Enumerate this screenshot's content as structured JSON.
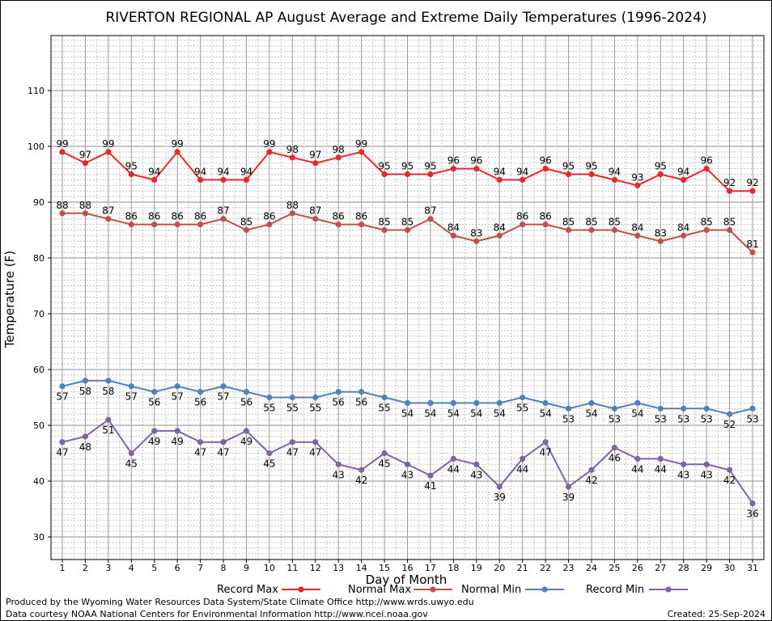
{
  "chart_data": {
    "type": "line",
    "title": "RIVERTON REGIONAL AP August Average and Extreme Daily Temperatures (1996-2024)",
    "xlabel": "Day of Month",
    "ylabel": "Temperature (F)",
    "xlim": [
      1,
      31
    ],
    "ylim": [
      25,
      120
    ],
    "yticks": [
      30,
      40,
      50,
      60,
      70,
      80,
      90,
      100,
      110
    ],
    "grid": true,
    "legend": "bottom",
    "x": [
      1,
      2,
      3,
      4,
      5,
      6,
      7,
      8,
      9,
      10,
      11,
      12,
      13,
      14,
      15,
      16,
      17,
      18,
      19,
      20,
      21,
      22,
      23,
      24,
      25,
      26,
      27,
      28,
      29,
      30,
      31
    ],
    "series": [
      {
        "name": "Record Max",
        "color": "#e8282a",
        "label_pos": "above",
        "values": [
          99,
          97,
          99,
          95,
          94,
          99,
          94,
          94,
          94,
          99,
          98,
          97,
          98,
          99,
          95,
          95,
          95,
          96,
          96,
          94,
          94,
          96,
          95,
          95,
          94,
          93,
          95,
          94,
          96,
          92,
          92
        ]
      },
      {
        "name": "Normal Max",
        "color": "#c0504d",
        "label_pos": "above",
        "values": [
          88,
          88,
          87,
          86,
          86,
          86,
          86,
          87,
          85,
          86,
          88,
          87,
          86,
          86,
          85,
          85,
          87,
          84,
          83,
          84,
          86,
          86,
          85,
          85,
          85,
          84,
          83,
          84,
          85,
          85,
          81
        ]
      },
      {
        "name": "Normal Min",
        "color": "#4f81bd",
        "label_pos": "below",
        "values": [
          57,
          58,
          58,
          57,
          56,
          57,
          56,
          57,
          56,
          55,
          55,
          55,
          56,
          56,
          55,
          54,
          54,
          54,
          54,
          54,
          55,
          54,
          53,
          54,
          53,
          54,
          53,
          53,
          53,
          52,
          53
        ]
      },
      {
        "name": "Record Min",
        "color": "#8064a2",
        "label_pos": "below",
        "values": [
          47,
          48,
          51,
          45,
          49,
          49,
          47,
          47,
          49,
          45,
          47,
          47,
          43,
          42,
          45,
          43,
          41,
          44,
          43,
          39,
          44,
          47,
          39,
          42,
          46,
          44,
          44,
          43,
          43,
          42,
          36
        ]
      }
    ]
  },
  "footer": {
    "line1": "Produced by the Wyoming Water Resources Data System/State Climate Office http://www.wrds.uwyo.edu",
    "line2": "Data courtesy NOAA National Centers for Environmental Information http://www.ncei.noaa.gov",
    "created": "Created:  25-Sep-2024"
  }
}
